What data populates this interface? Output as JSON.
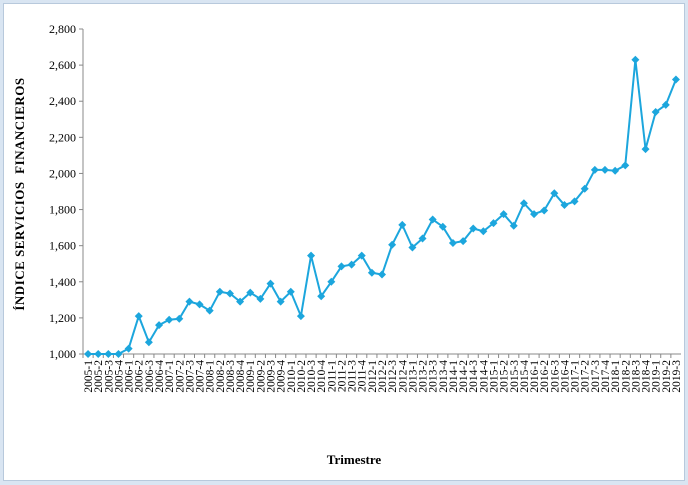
{
  "chart_data": {
    "type": "line",
    "x_label": "Trimestre",
    "y_label": "ÍNDICE SERVICIOS  FINANCIEROS",
    "color": "#1ca6dd",
    "categories": [
      "2005-1",
      "2005-2",
      "2005-3",
      "2005-4",
      "2006-1",
      "2006-2",
      "2006-3",
      "2006-4",
      "2007-1",
      "2007-2",
      "2007-3",
      "2007-4",
      "2008-1",
      "2008-2",
      "2008-3",
      "2008-4",
      "2009-1",
      "2009-2",
      "2009-3",
      "2009-4",
      "2010-1",
      "2010-2",
      "2010-3",
      "2010-4",
      "2011-1",
      "2011-2",
      "2011-3",
      "2011-4",
      "2012-1",
      "2012-2",
      "2012-3",
      "2012-4",
      "2013-1",
      "2013-2",
      "2013-3",
      "2013-4",
      "2014-1",
      "2014-2",
      "2014-3",
      "2014-4",
      "2015-1",
      "2015-2",
      "2015-3",
      "2015-4",
      "2016-1",
      "2016-2",
      "2016-3",
      "2016-4",
      "2017-1",
      "2017-2",
      "2017-3",
      "2017-4",
      "2018-1",
      "2018-2",
      "2018-3",
      "2018-4",
      "2019-1",
      "2019-2",
      "2019-3"
    ],
    "values": [
      1000,
      1000,
      1000,
      1000,
      1030,
      1210,
      1065,
      1160,
      1190,
      1195,
      1290,
      1275,
      1240,
      1345,
      1335,
      1290,
      1340,
      1305,
      1390,
      1290,
      1345,
      1210,
      1545,
      1320,
      1400,
      1485,
      1495,
      1545,
      1450,
      1440,
      1605,
      1715,
      1590,
      1640,
      1745,
      1705,
      1615,
      1625,
      1695,
      1680,
      1725,
      1775,
      1710,
      1835,
      1775,
      1795,
      1890,
      1825,
      1845,
      1915,
      2020,
      2020,
      2015,
      2045,
      2630,
      2135,
      2340,
      2380,
      2520
    ],
    "ylim": [
      1000,
      2800
    ],
    "yticks": [
      {
        "value": 1000,
        "label": "1,000"
      },
      {
        "value": 1200,
        "label": "1,200"
      },
      {
        "value": 1400,
        "label": "1,400"
      },
      {
        "value": 1600,
        "label": "1,600"
      },
      {
        "value": 1800,
        "label": "1,800"
      },
      {
        "value": 2000,
        "label": "2,000"
      },
      {
        "value": 2200,
        "label": "2,200"
      },
      {
        "value": 2400,
        "label": "2,400"
      },
      {
        "value": 2600,
        "label": "2,600"
      },
      {
        "value": 2800,
        "label": "2,800"
      }
    ],
    "grid": false
  }
}
